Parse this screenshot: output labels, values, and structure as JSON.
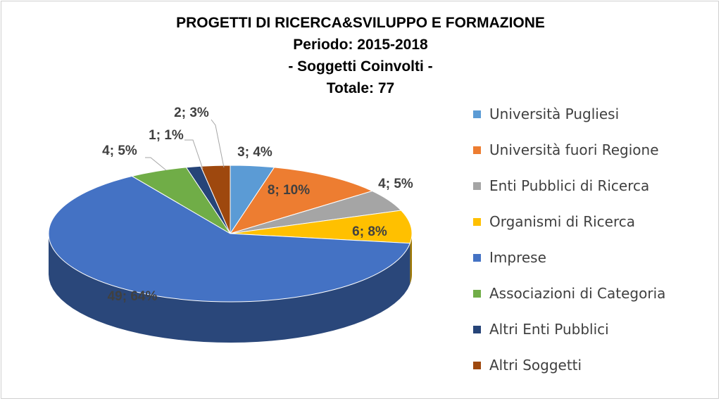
{
  "chart_data": {
    "type": "pie",
    "title": [
      "PROGETTI DI RICERCA&SVILUPPO E FORMAZIONE",
      "Periodo: 2015-2018",
      "- Soggetti Coinvolti -",
      "Totale: 77"
    ],
    "slices": [
      {
        "name": "Università Pugliesi",
        "value": 3,
        "percent": 4,
        "label": "3; 4%",
        "color": "#5B9BD5"
      },
      {
        "name": "Università fuori Regione",
        "value": 8,
        "percent": 10,
        "label": "8; 10%",
        "color": "#ED7D31"
      },
      {
        "name": "Enti Pubblici di Ricerca",
        "value": 4,
        "percent": 5,
        "label": "4; 5%",
        "color": "#A5A5A5"
      },
      {
        "name": "Organismi di Ricerca",
        "value": 6,
        "percent": 8,
        "label": "6; 8%",
        "color": "#FFC000"
      },
      {
        "name": "Imprese",
        "value": 49,
        "percent": 64,
        "label": "49; 64%",
        "color": "#4472C4"
      },
      {
        "name": "Associazioni di Categoria",
        "value": 4,
        "percent": 5,
        "label": "4; 5%",
        "color": "#70AD47"
      },
      {
        "name": "Altri Enti Pubblici",
        "value": 1,
        "percent": 1,
        "label": "1; 1%",
        "color": "#264478"
      },
      {
        "name": "Altri Soggetti",
        "value": 2,
        "percent": 3,
        "label": "2; 3%",
        "color": "#9E480E"
      }
    ],
    "legend_position": "right",
    "style": "3d-pie"
  }
}
